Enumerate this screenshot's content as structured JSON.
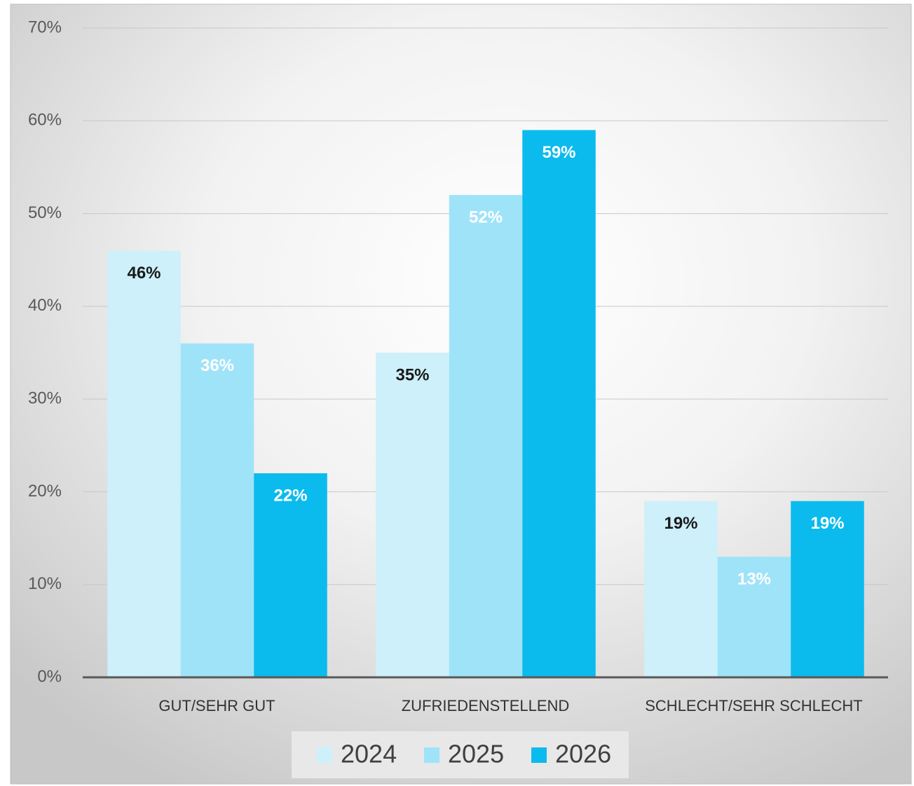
{
  "chart_data": {
    "type": "bar",
    "categories": [
      "GUT/SEHR GUT",
      "ZUFRIEDENSTELLEND",
      "SCHLECHT/SEHR SCHLECHT"
    ],
    "series": [
      {
        "name": "2024",
        "color": "#cdf0fb",
        "label_color": "#1a1a1a",
        "values": [
          46,
          35,
          19
        ],
        "value_labels": [
          "46%",
          "35%",
          "19%"
        ]
      },
      {
        "name": "2025",
        "color": "#9fe3f9",
        "label_color": "#ffffff",
        "values": [
          36,
          52,
          13
        ],
        "value_labels": [
          "36%",
          "52%",
          "13%"
        ]
      },
      {
        "name": "2026",
        "color": "#0bbbed",
        "label_color": "#ffffff",
        "values": [
          22,
          59,
          19
        ],
        "value_labels": [
          "22%",
          "59%",
          "19%"
        ]
      }
    ],
    "ylim": [
      0,
      70
    ],
    "yticks": [
      {
        "value": 0,
        "label": "0%"
      },
      {
        "value": 10,
        "label": "10%"
      },
      {
        "value": 20,
        "label": "20%"
      },
      {
        "value": 30,
        "label": "30%"
      },
      {
        "value": 40,
        "label": "40%"
      },
      {
        "value": 50,
        "label": "50%"
      },
      {
        "value": 60,
        "label": "60%"
      },
      {
        "value": 70,
        "label": "70%"
      }
    ],
    "grid": true,
    "legend": "bottom"
  }
}
